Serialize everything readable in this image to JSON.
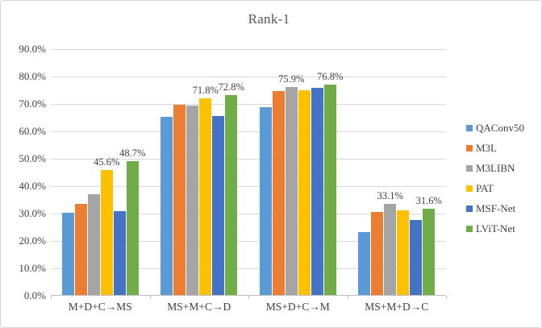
{
  "chart_data": {
    "type": "bar",
    "title": "Rank-1",
    "xlabel": "",
    "ylabel": "",
    "categories": [
      "M+D+C→MS",
      "MS+M+C→D",
      "MS+D+C→M",
      "MS+M+D→C"
    ],
    "series": [
      {
        "name": "QAConv50",
        "color": "#5B9BD5",
        "values": [
          30.0,
          65.0,
          68.5,
          22.8
        ],
        "labels": [
          null,
          null,
          null,
          null
        ]
      },
      {
        "name": "M3L",
        "color": "#ED7D31",
        "values": [
          33.1,
          69.4,
          74.5,
          30.4
        ],
        "labels": [
          null,
          null,
          null,
          null
        ]
      },
      {
        "name": "M3LIBN",
        "color": "#A5A5A5",
        "values": [
          36.9,
          69.0,
          75.9,
          33.1
        ],
        "labels": [
          null,
          null,
          "75.9%",
          "33.1%"
        ]
      },
      {
        "name": "PAT",
        "color": "#FFC000",
        "values": [
          45.6,
          71.8,
          74.8,
          31.0
        ],
        "labels": [
          "45.6%",
          "71.8%",
          null,
          null
        ]
      },
      {
        "name": "MSF-Net",
        "color": "#4472C4",
        "values": [
          30.5,
          65.3,
          75.5,
          27.5
        ],
        "labels": [
          null,
          null,
          null,
          null
        ]
      },
      {
        "name": "LViT-Net",
        "color": "#70AD47",
        "values": [
          48.7,
          72.8,
          76.8,
          31.6
        ],
        "labels": [
          "48.7%",
          "72.8%",
          "76.8%",
          "31.6%"
        ]
      }
    ],
    "ylim": [
      0,
      90
    ],
    "ytick_step": 10,
    "yticks": [
      "90.0%",
      "80.0%",
      "70.0%",
      "60.0%",
      "50.0%",
      "40.0%",
      "30.0%",
      "20.0%",
      "10.0%",
      "0.0%"
    ],
    "grid": true,
    "legend_position": "right"
  },
  "colors": {
    "grid": "#D9D9D9",
    "axis": "#BFBFBF",
    "text": "#404040",
    "title_text": "#555555",
    "frame_border": "#D6D6D6",
    "background": "#FFFFFF"
  }
}
